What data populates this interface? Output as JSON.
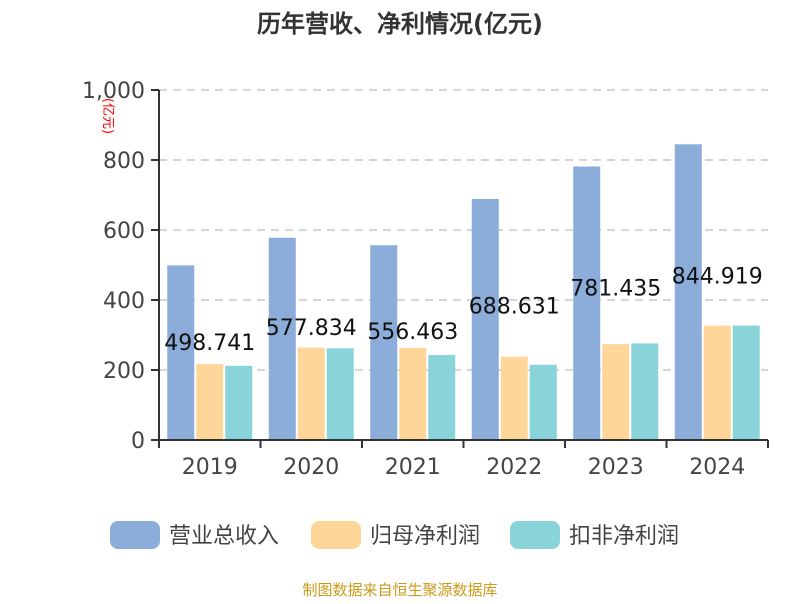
{
  "chart_data": {
    "type": "bar",
    "title": "历年营收、净利情况(亿元)",
    "ylabel": "(亿元)",
    "ylim": [
      0,
      1000
    ],
    "yticks": [
      "0",
      "200",
      "400",
      "600",
      "800",
      "1,000"
    ],
    "ytick_values": [
      0,
      200,
      400,
      600,
      800,
      1000
    ],
    "grid": true,
    "legend_position": "bottom",
    "categories": [
      "2019",
      "2020",
      "2021",
      "2022",
      "2023",
      "2024"
    ],
    "series": [
      {
        "name": "营业总收入",
        "color": "#8cacd9",
        "values": [
          498.741,
          577.834,
          556.463,
          688.631,
          781.435,
          844.919
        ],
        "labels": [
          "498.741",
          "577.834",
          "556.463",
          "688.631",
          "781.435",
          "844.919"
        ]
      },
      {
        "name": "归母净利润",
        "color": "#ffd699",
        "values": [
          217,
          264,
          263,
          238,
          274,
          327
        ]
      },
      {
        "name": "扣非净利润",
        "color": "#88d4d8",
        "values": [
          212,
          262,
          243,
          215,
          276,
          327
        ]
      }
    ]
  },
  "source": "制图数据来自恒生聚源数据库"
}
